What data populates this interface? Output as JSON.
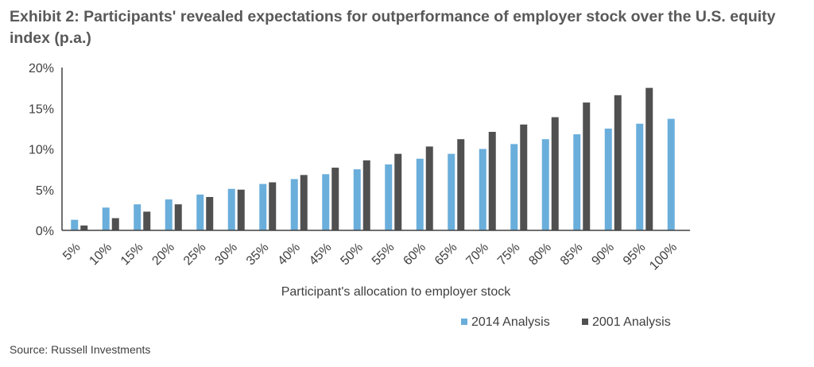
{
  "title": "Exhibit 2: Participants' revealed expectations for outperformance of employer stock over the U.S. equity index (p.a.)",
  "source": "Source: Russell Investments",
  "colors": {
    "series2014": "#6AAEDB",
    "series2001": "#505050",
    "axis": "#404040",
    "text": "#404040"
  },
  "chart_data": {
    "type": "bar",
    "title": "Exhibit 2: Participants' revealed expectations for outperformance of employer stock over the U.S. equity index (p.a.)",
    "xlabel": "Participant's allocation to employer stock",
    "ylabel": "",
    "ylim": [
      0,
      20
    ],
    "yticks": [
      "0%",
      "5%",
      "10%",
      "15%",
      "20%"
    ],
    "ytick_values": [
      0,
      5,
      10,
      15,
      20
    ],
    "grid": false,
    "legend_position": "bottom-right",
    "categories": [
      "5%",
      "10%",
      "15%",
      "20%",
      "25%",
      "30%",
      "35%",
      "40%",
      "45%",
      "50%",
      "55%",
      "60%",
      "65%",
      "70%",
      "75%",
      "80%",
      "85%",
      "90%",
      "95%",
      "100%"
    ],
    "series": [
      {
        "name": "2014 Analysis",
        "color": "#6AAEDB",
        "values": [
          1.3,
          2.8,
          3.2,
          3.8,
          4.4,
          5.1,
          5.7,
          6.3,
          6.9,
          7.5,
          8.1,
          8.8,
          9.4,
          10.0,
          10.6,
          11.2,
          11.8,
          12.5,
          13.1,
          13.7
        ]
      },
      {
        "name": "2001 Analysis",
        "color": "#505050",
        "values": [
          0.6,
          1.5,
          2.3,
          3.2,
          4.1,
          5.0,
          5.9,
          6.8,
          7.7,
          8.6,
          9.4,
          10.3,
          11.2,
          12.1,
          13.0,
          13.9,
          15.7,
          16.6,
          17.5,
          null
        ]
      }
    ]
  }
}
